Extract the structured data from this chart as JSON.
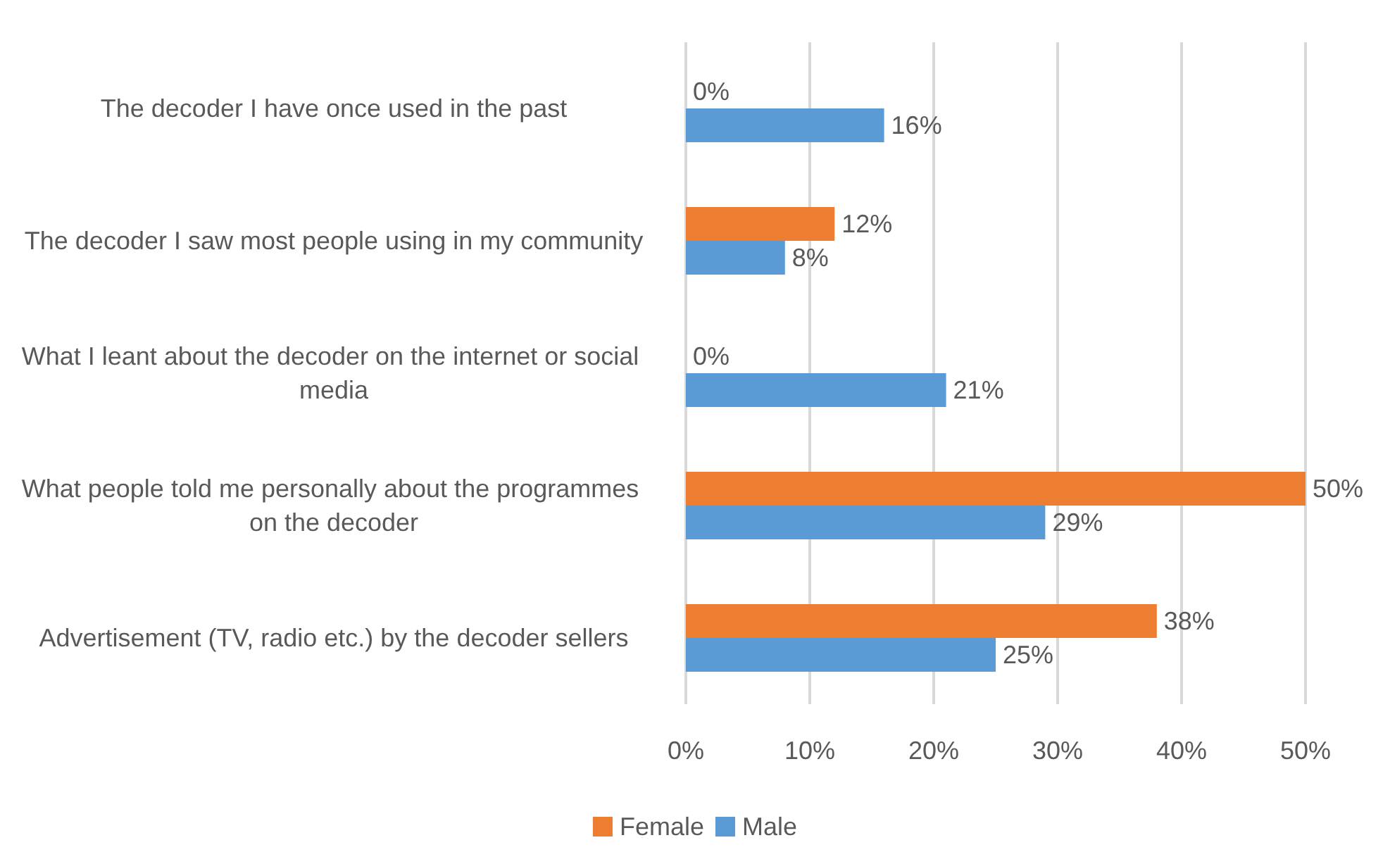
{
  "chart_data": {
    "type": "bar",
    "orientation": "horizontal",
    "categories": [
      "The decoder I have once used in the past",
      "The decoder I saw most people using in my community",
      "What I leant about the decoder on the internet or social media",
      "What people told me personally about the programmes on the decoder",
      "Advertisement (TV, radio etc.) by the decoder sellers"
    ],
    "series": [
      {
        "name": "Female",
        "color": "#ed7d31",
        "values": [
          0,
          12,
          0,
          50,
          38
        ],
        "value_labels": [
          "0%",
          "12%",
          "0%",
          "50%",
          "38%"
        ]
      },
      {
        "name": "Male",
        "color": "#5b9bd5",
        "values": [
          16,
          8,
          21,
          29,
          25
        ],
        "value_labels": [
          "16%",
          "8%",
          "21%",
          "29%",
          "25%"
        ]
      }
    ],
    "xlim": [
      0,
      50
    ],
    "xticks": [
      {
        "value": 0,
        "label": "0%"
      },
      {
        "value": 10,
        "label": "10%"
      },
      {
        "value": 20,
        "label": "20%"
      },
      {
        "value": 30,
        "label": "30%"
      },
      {
        "value": 40,
        "label": "40%"
      },
      {
        "value": 50,
        "label": "50%"
      }
    ],
    "grid": "x",
    "legend": "bottom"
  }
}
